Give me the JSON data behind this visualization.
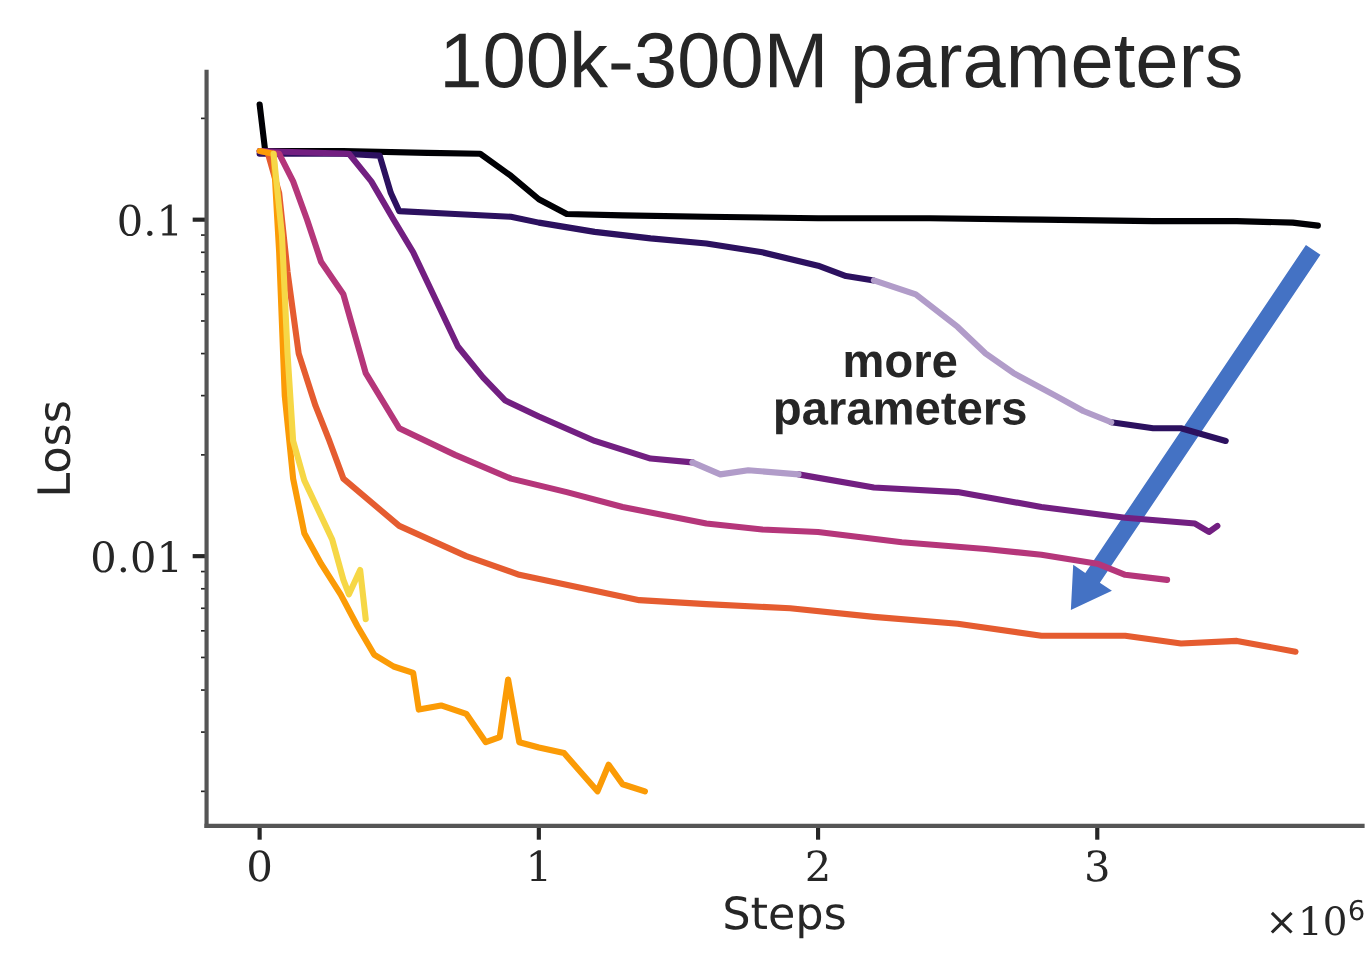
{
  "chart_data": {
    "type": "line",
    "title": "100k-300M parameters",
    "xlabel": "Steps",
    "ylabel": "Loss",
    "annotations": [
      "more\nparameters",
      "×10$^{6}$"
    ],
    "log": "y",
    "grid": false,
    "legend": false,
    "marker": "none",
    "line_style": "solid",
    "xlim": [
      -0.19,
      3.95
    ],
    "xticks": [
      0,
      1,
      2,
      3
    ],
    "ylim": [
      0.00158,
      0.275
    ],
    "yticks": [
      0.1,
      0.01
    ],
    "series": [
      {
        "color": "#000004",
        "x": [
          0,
          0.02,
          0.3,
          0.6,
          0.79,
          0.9,
          1.0,
          1.1,
          1.3,
          1.6,
          2.0,
          2.4,
          2.8,
          3.2,
          3.5,
          3.7,
          3.79
        ],
        "values": [
          0.22,
          0.16,
          0.16,
          0.158,
          0.157,
          0.135,
          0.115,
          0.104,
          0.103,
          0.102,
          0.101,
          0.101,
          0.1,
          0.099,
          0.099,
          0.098,
          0.096
        ]
      },
      {
        "color": "#2c115f",
        "x": [
          0,
          0.3,
          0.43,
          0.47,
          0.5,
          0.7,
          0.9,
          1.0,
          1.2,
          1.4,
          1.6,
          1.8,
          2.0,
          2.1,
          2.2,
          2.6,
          3.05,
          3.2,
          3.3,
          3.46
        ],
        "values": [
          0.157,
          0.157,
          0.155,
          0.12,
          0.106,
          0.104,
          0.102,
          0.098,
          0.092,
          0.088,
          0.085,
          0.08,
          0.073,
          0.068,
          0.066,
          null,
          0.025,
          0.024,
          0.024,
          0.022
        ]
      },
      {
        "color": "#721f81",
        "x": [
          0,
          0.32,
          0.4,
          0.48,
          0.55,
          0.63,
          0.71,
          0.8,
          0.88,
          1.0,
          1.2,
          1.4,
          1.55,
          1.75,
          1.93,
          2.2,
          2.5,
          2.8,
          3.1,
          3.35,
          3.4,
          3.43
        ],
        "values": [
          0.16,
          0.157,
          0.13,
          0.1,
          0.08,
          0.058,
          0.042,
          0.034,
          0.029,
          0.026,
          0.022,
          0.0195,
          0.019,
          null,
          0.0175,
          0.016,
          0.0155,
          0.014,
          0.013,
          0.0125,
          0.0118,
          0.0123
        ]
      },
      {
        "color": "#b19cc9",
        "x": [
          1.55,
          1.65,
          1.75,
          1.93,
          2.05,
          2.2,
          2.35,
          2.5,
          2.6,
          2.7,
          2.85,
          2.95,
          3.05
        ],
        "values": [
          0.019,
          0.0175,
          0.018,
          0.0175,
          null,
          0.066,
          0.06,
          0.048,
          0.04,
          0.035,
          0.03,
          0.027,
          0.025
        ]
      },
      {
        "color": "#b5367a",
        "x": [
          0,
          0.07,
          0.12,
          0.17,
          0.22,
          0.3,
          0.38,
          0.5,
          0.7,
          0.9,
          1.1,
          1.3,
          1.6,
          1.8,
          2.0,
          2.3,
          2.6,
          2.8,
          3.0,
          3.1,
          3.25
        ],
        "values": [
          0.16,
          0.157,
          0.13,
          0.1,
          0.075,
          0.06,
          0.035,
          0.024,
          0.02,
          0.017,
          0.0155,
          0.014,
          0.0125,
          0.012,
          0.0118,
          0.011,
          0.0105,
          0.0101,
          0.0095,
          0.0088,
          0.0085
        ]
      },
      {
        "color": "#e55c30",
        "x": [
          0.03,
          0.07,
          0.1,
          0.14,
          0.2,
          0.25,
          0.3,
          0.5,
          0.74,
          0.93,
          1.36,
          1.6,
          1.9,
          2.2,
          2.5,
          2.8,
          3.1,
          3.3,
          3.5,
          3.71
        ],
        "values": [
          0.157,
          0.12,
          0.07,
          0.04,
          0.028,
          0.022,
          0.017,
          0.0123,
          0.01,
          0.0088,
          0.0074,
          0.0072,
          0.007,
          0.0066,
          0.0063,
          0.0058,
          0.0058,
          0.0055,
          0.0056,
          0.0052
        ]
      },
      {
        "color": "#fb9b06",
        "x": [
          0,
          0.05,
          0.07,
          0.09,
          0.12,
          0.16,
          0.22,
          0.29,
          0.35,
          0.41,
          0.48,
          0.55,
          0.57,
          0.65,
          0.74,
          0.81,
          0.86,
          0.89,
          0.93,
          1.0,
          1.09,
          1.21,
          1.25,
          1.3,
          1.38
        ],
        "values": [
          0.16,
          0.157,
          0.08,
          0.03,
          0.017,
          0.0117,
          0.0095,
          0.0077,
          0.0062,
          0.0051,
          0.0047,
          0.0045,
          0.0035,
          0.0036,
          0.0034,
          0.0028,
          0.0029,
          0.0043,
          0.0028,
          0.0027,
          0.0026,
          0.002,
          0.0024,
          0.0021,
          0.002
        ]
      },
      {
        "color": "#f6d746",
        "x": [
          0.05,
          0.08,
          0.1,
          0.12,
          0.16,
          0.26,
          0.3,
          0.32,
          0.36,
          0.38
        ],
        "values": [
          0.157,
          0.09,
          0.04,
          0.022,
          0.0168,
          0.0112,
          0.0085,
          0.0077,
          0.0091,
          0.0065
        ]
      }
    ]
  }
}
